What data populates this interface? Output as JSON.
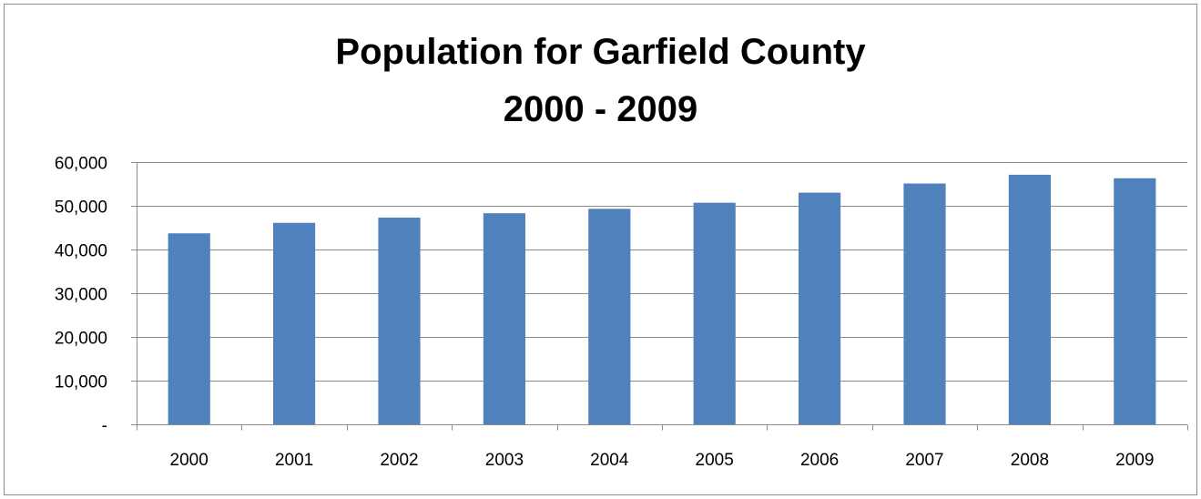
{
  "chart_data": {
    "type": "bar",
    "title_lines": [
      "Population for Garfield County",
      "2000 - 2009"
    ],
    "categories": [
      "2000",
      "2001",
      "2002",
      "2003",
      "2004",
      "2005",
      "2006",
      "2007",
      "2008",
      "2009"
    ],
    "values": [
      43700,
      46100,
      47300,
      48300,
      49300,
      50700,
      53000,
      55100,
      57100,
      56300
    ],
    "ylim": [
      0,
      60000
    ],
    "yticks": [
      0,
      10000,
      20000,
      30000,
      40000,
      50000,
      60000
    ],
    "ytick_labels": [
      "-",
      "10,000",
      "20,000",
      "30,000",
      "40,000",
      "50,000",
      "60,000"
    ],
    "grid": true,
    "legend": "none",
    "bar_color": "#4f81bd"
  }
}
